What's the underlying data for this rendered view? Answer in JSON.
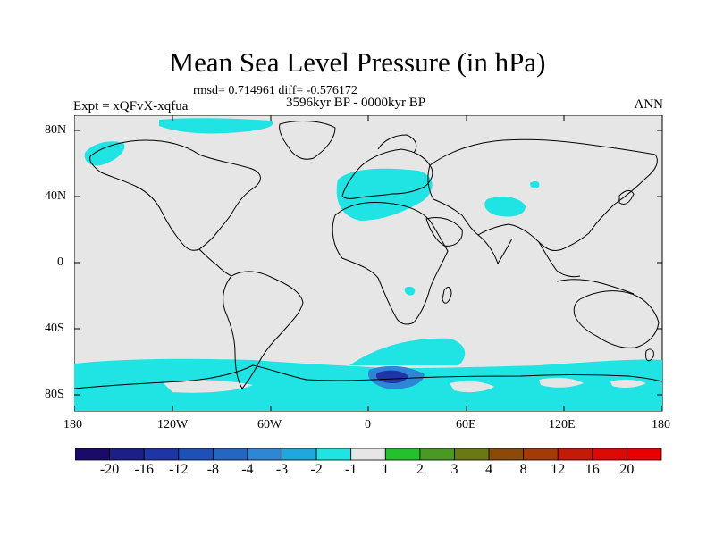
{
  "title": "Mean Sea Level Pressure (in hPa)",
  "stats": "rmsd= 0.714961 diff= -0.576172",
  "period": "3596kyr BP - 0000kyr BP",
  "experiment": "Expt = xQFvX-xqfua",
  "season": "ANN",
  "lat_ticks": [
    "80N",
    "40N",
    "0",
    "40S",
    "80S"
  ],
  "lon_ticks": [
    "180",
    "120W",
    "60W",
    "0",
    "60E",
    "120E",
    "180"
  ],
  "colorbar": {
    "labels": [
      "-20",
      "-16",
      "-12",
      "-8",
      "-4",
      "-3",
      "-2",
      "-1",
      "1",
      "2",
      "3",
      "4",
      "8",
      "12",
      "16",
      "20"
    ],
    "colors": [
      "#1a0a6a",
      "#1c1e8c",
      "#1f34a6",
      "#1f4fb8",
      "#2466c4",
      "#2e86d6",
      "#1ea8e0",
      "#20e3e3",
      "#e6e6e6",
      "#22c22a",
      "#4a9a22",
      "#6a7a10",
      "#8c4a08",
      "#a63a06",
      "#c21c08",
      "#dc0a04",
      "#e80000"
    ]
  },
  "colors": {
    "land_ocean": "#e6e6e6",
    "anomaly_cyan": "#20e3e3",
    "anomaly_blue": "#2e86d6",
    "anomaly_dark": "#1f34a6",
    "coast": "#000000"
  }
}
